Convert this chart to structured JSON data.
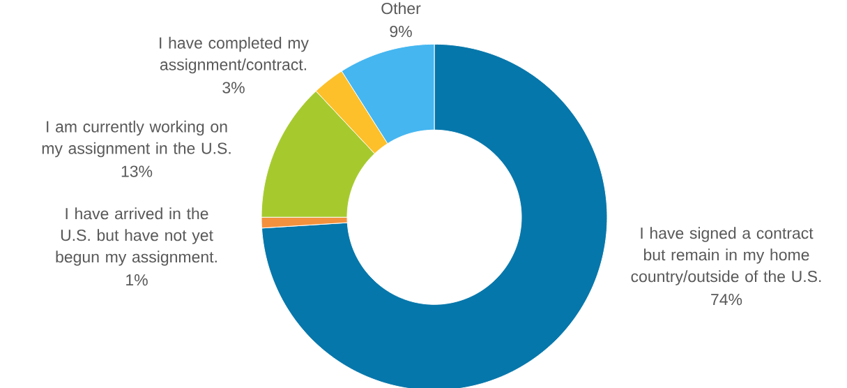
{
  "chart_data": {
    "type": "donut",
    "categories": [
      "I have signed a contract but remain in my home country/outside of the U.S.",
      "I have arrived in the U.S. but have not yet begun my assignment.",
      "I am currently working on my assignment in the U.S.",
      "I have completed my assignment/contract.",
      "Other"
    ],
    "values": [
      74,
      1,
      13,
      3,
      9
    ],
    "value_labels": [
      "74%",
      "1%",
      "13%",
      "3%",
      "9%"
    ],
    "colors": [
      "#0677ab",
      "#f4913e",
      "#a6ca2e",
      "#fdc02a",
      "#45b6f0"
    ]
  }
}
